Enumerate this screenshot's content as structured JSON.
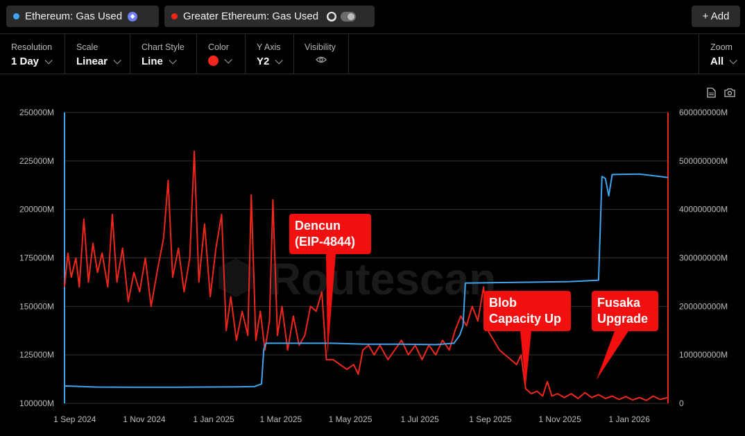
{
  "series_pills": [
    {
      "label": "Ethereum: Gas Used",
      "color": "#3ea6f0"
    },
    {
      "label": "Greater Ethereum: Gas Used",
      "color": "#f0271c"
    }
  ],
  "add_label": "+ Add",
  "controls": {
    "resolution": {
      "label": "Resolution",
      "value": "1 Day"
    },
    "scale": {
      "label": "Scale",
      "value": "Linear"
    },
    "chart_style": {
      "label": "Chart Style",
      "value": "Line"
    },
    "color": {
      "label": "Color",
      "value": "#f0271c"
    },
    "y_axis": {
      "label": "Y Axis",
      "value": "Y2"
    },
    "visibility": {
      "label": "Visibility"
    },
    "zoom": {
      "label": "Zoom",
      "value": "All"
    }
  },
  "icons": {
    "export": "file-icon",
    "snapshot": "camera-icon",
    "visibility": "eye-icon"
  },
  "watermark": "Routescan",
  "chart_data": {
    "type": "line",
    "x_ticks": [
      "1 Sep 2024",
      "1 Nov 2024",
      "1 Jan 2025",
      "1 Mar 2025",
      "1 May 2025",
      "1 Jul 2025",
      "1 Sep 2025",
      "1 Nov 2025",
      "1 Jan 2026"
    ],
    "y_left_ticks": [
      "250000M",
      "225000M",
      "200000M",
      "175000M",
      "150000M",
      "125000M",
      "100000M"
    ],
    "y_right_ticks": [
      "600000000M",
      "500000000M",
      "400000000M",
      "300000000M",
      "200000000M",
      "100000000M",
      "0"
    ],
    "y_left_range": [
      100000,
      250000
    ],
    "y_right_range": [
      0,
      600000000
    ],
    "x_range": [
      "2024-08-23",
      "2026-02-04"
    ],
    "grid": true,
    "series": [
      {
        "name": "Ethereum: Gas Used",
        "color": "#3ea6f0",
        "axis": "left",
        "points": [
          [
            "2024-08-23",
            109000
          ],
          [
            "2024-09-20",
            108400
          ],
          [
            "2024-10-20",
            108300
          ],
          [
            "2024-11-20",
            108300
          ],
          [
            "2024-12-20",
            108400
          ],
          [
            "2025-01-20",
            108500
          ],
          [
            "2025-02-06",
            108700
          ],
          [
            "2025-02-12",
            110000
          ],
          [
            "2025-02-14",
            128000
          ],
          [
            "2025-02-16",
            131000
          ],
          [
            "2025-03-15",
            131000
          ],
          [
            "2025-04-15",
            131000
          ],
          [
            "2025-05-15",
            130500
          ],
          [
            "2025-06-15",
            130500
          ],
          [
            "2025-07-15",
            130300
          ],
          [
            "2025-07-31",
            131000
          ],
          [
            "2025-08-05",
            135000
          ],
          [
            "2025-08-08",
            140000
          ],
          [
            "2025-08-10",
            162000
          ],
          [
            "2025-09-10",
            162300
          ],
          [
            "2025-10-10",
            162500
          ],
          [
            "2025-11-10",
            162800
          ],
          [
            "2025-12-05",
            163500
          ],
          [
            "2025-12-08",
            217000
          ],
          [
            "2025-12-11",
            216000
          ],
          [
            "2025-12-14",
            207000
          ],
          [
            "2025-12-17",
            218000
          ],
          [
            "2026-01-10",
            218200
          ],
          [
            "2026-02-04",
            216500
          ]
        ]
      },
      {
        "name": "Greater Ethereum: Gas Used",
        "color": "#f0271c",
        "axis": "right",
        "points": [
          [
            "2024-08-23",
            240000000
          ],
          [
            "2024-08-26",
            310000000
          ],
          [
            "2024-08-29",
            260000000
          ],
          [
            "2024-09-02",
            300000000
          ],
          [
            "2024-09-05",
            240000000
          ],
          [
            "2024-09-09",
            380000000
          ],
          [
            "2024-09-13",
            250000000
          ],
          [
            "2024-09-17",
            330000000
          ],
          [
            "2024-09-21",
            270000000
          ],
          [
            "2024-09-25",
            310000000
          ],
          [
            "2024-09-30",
            240000000
          ],
          [
            "2024-10-04",
            390000000
          ],
          [
            "2024-10-08",
            250000000
          ],
          [
            "2024-10-13",
            320000000
          ],
          [
            "2024-10-18",
            210000000
          ],
          [
            "2024-10-23",
            270000000
          ],
          [
            "2024-10-28",
            230000000
          ],
          [
            "2024-11-02",
            300000000
          ],
          [
            "2024-11-07",
            200000000
          ],
          [
            "2024-11-13",
            280000000
          ],
          [
            "2024-11-18",
            340000000
          ],
          [
            "2024-11-22",
            460000000
          ],
          [
            "2024-11-26",
            260000000
          ],
          [
            "2024-12-01",
            320000000
          ],
          [
            "2024-12-06",
            230000000
          ],
          [
            "2024-12-11",
            300000000
          ],
          [
            "2024-12-15",
            520000000
          ],
          [
            "2024-12-19",
            250000000
          ],
          [
            "2024-12-24",
            370000000
          ],
          [
            "2024-12-29",
            220000000
          ],
          [
            "2025-01-03",
            320000000
          ],
          [
            "2025-01-08",
            390000000
          ],
          [
            "2025-01-12",
            150000000
          ],
          [
            "2025-01-16",
            220000000
          ],
          [
            "2025-01-21",
            130000000
          ],
          [
            "2025-01-26",
            190000000
          ],
          [
            "2025-01-31",
            140000000
          ],
          [
            "2025-02-03",
            430000000
          ],
          [
            "2025-02-07",
            130000000
          ],
          [
            "2025-02-11",
            190000000
          ],
          [
            "2025-02-15",
            110000000
          ],
          [
            "2025-02-19",
            170000000
          ],
          [
            "2025-02-22",
            420000000
          ],
          [
            "2025-02-26",
            140000000
          ],
          [
            "2025-03-02",
            200000000
          ],
          [
            "2025-03-07",
            110000000
          ],
          [
            "2025-03-12",
            180000000
          ],
          [
            "2025-03-17",
            120000000
          ],
          [
            "2025-03-22",
            140000000
          ],
          [
            "2025-03-27",
            200000000
          ],
          [
            "2025-04-01",
            190000000
          ],
          [
            "2025-04-06",
            230000000
          ],
          [
            "2025-04-10",
            90000000
          ],
          [
            "2025-04-16",
            90000000
          ],
          [
            "2025-04-22",
            80000000
          ],
          [
            "2025-04-28",
            70000000
          ],
          [
            "2025-05-04",
            80000000
          ],
          [
            "2025-05-08",
            60000000
          ],
          [
            "2025-05-12",
            110000000
          ],
          [
            "2025-05-17",
            120000000
          ],
          [
            "2025-05-22",
            100000000
          ],
          [
            "2025-05-27",
            120000000
          ],
          [
            "2025-06-03",
            90000000
          ],
          [
            "2025-06-09",
            110000000
          ],
          [
            "2025-06-15",
            130000000
          ],
          [
            "2025-06-21",
            100000000
          ],
          [
            "2025-06-27",
            120000000
          ],
          [
            "2025-07-03",
            90000000
          ],
          [
            "2025-07-09",
            120000000
          ],
          [
            "2025-07-15",
            100000000
          ],
          [
            "2025-07-21",
            130000000
          ],
          [
            "2025-07-27",
            110000000
          ],
          [
            "2025-08-01",
            150000000
          ],
          [
            "2025-08-06",
            180000000
          ],
          [
            "2025-08-11",
            160000000
          ],
          [
            "2025-08-16",
            200000000
          ],
          [
            "2025-08-21",
            170000000
          ],
          [
            "2025-08-26",
            240000000
          ],
          [
            "2025-08-30",
            150000000
          ],
          [
            "2025-09-04",
            130000000
          ],
          [
            "2025-09-09",
            110000000
          ],
          [
            "2025-09-14",
            100000000
          ],
          [
            "2025-09-19",
            90000000
          ],
          [
            "2025-09-24",
            80000000
          ],
          [
            "2025-09-28",
            100000000
          ],
          [
            "2025-10-02",
            30000000
          ],
          [
            "2025-10-07",
            20000000
          ],
          [
            "2025-10-12",
            25000000
          ],
          [
            "2025-10-17",
            15000000
          ],
          [
            "2025-10-21",
            45000000
          ],
          [
            "2025-10-25",
            15000000
          ],
          [
            "2025-10-30",
            20000000
          ],
          [
            "2025-11-05",
            12000000
          ],
          [
            "2025-11-11",
            20000000
          ],
          [
            "2025-11-17",
            10000000
          ],
          [
            "2025-11-23",
            22000000
          ],
          [
            "2025-11-29",
            12000000
          ],
          [
            "2025-12-05",
            18000000
          ],
          [
            "2025-12-11",
            10000000
          ],
          [
            "2025-12-17",
            15000000
          ],
          [
            "2025-12-23",
            8000000
          ],
          [
            "2025-12-29",
            14000000
          ],
          [
            "2026-01-04",
            7000000
          ],
          [
            "2026-01-10",
            12000000
          ],
          [
            "2026-01-16",
            6000000
          ],
          [
            "2026-01-22",
            15000000
          ],
          [
            "2026-01-28",
            8000000
          ],
          [
            "2026-02-04",
            12000000
          ]
        ]
      }
    ],
    "annotations": [
      {
        "lines": [
          "Dencun",
          "(EIP-4844)"
        ],
        "pointer_date": "2025-04-11",
        "pointer_value_left": 125000
      },
      {
        "lines": [
          "Blob",
          "Capacity Up"
        ],
        "pointer_date": "2025-10-02",
        "pointer_value_left": 108500
      },
      {
        "lines": [
          "Fusaka",
          "Upgrade"
        ],
        "pointer_date": "2025-12-03",
        "pointer_value_left": 112000
      }
    ]
  }
}
